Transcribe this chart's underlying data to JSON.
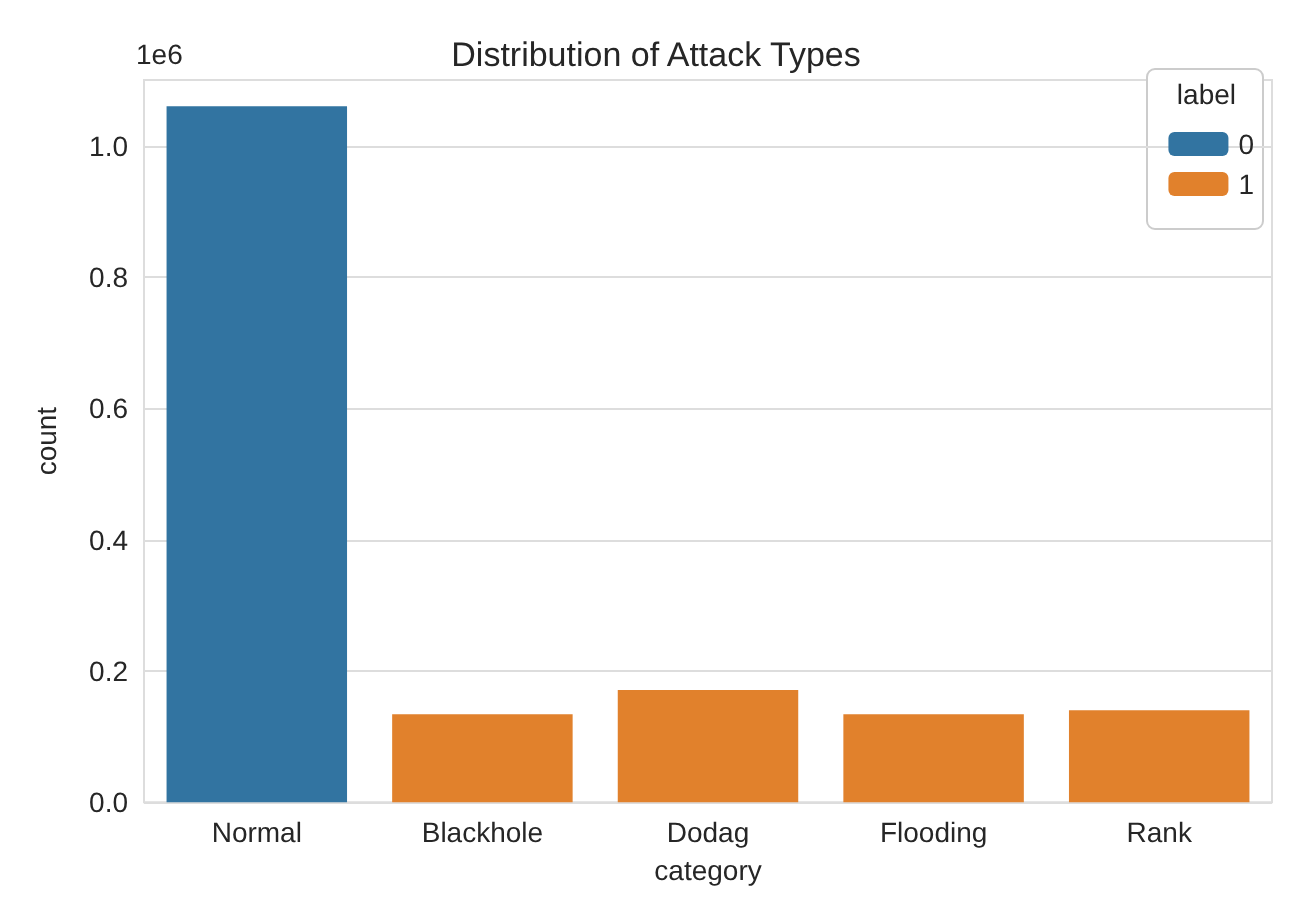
{
  "chart_data": {
    "type": "bar",
    "title": "Distribution of Attack Types",
    "xlabel": "category",
    "ylabel": "count",
    "legend_title": "label",
    "annotations": [
      "1e6"
    ],
    "categories": [
      "Normal",
      "Blackhole",
      "Dodag",
      "Flooding",
      "Rank"
    ],
    "series": [
      {
        "name": "0",
        "color": "#3274a1",
        "values": [
          1.06,
          null,
          null,
          null,
          null
        ]
      },
      {
        "name": "1",
        "color": "#e1812c",
        "values": [
          null,
          0.134,
          0.171,
          0.134,
          0.14
        ]
      }
    ],
    "stacked": true,
    "ylim": [
      0,
      1.1
    ],
    "yticks": [
      {
        "value": 0,
        "label": "0.0"
      },
      {
        "value": 0.2,
        "label": "0.2"
      },
      {
        "value": 0.4,
        "label": "0.4"
      },
      {
        "value": 0.6,
        "label": "0.6"
      },
      {
        "value": 0.8,
        "label": "0.8"
      },
      {
        "value": 1,
        "label": "1.0"
      }
    ],
    "grid": "y",
    "legend": "top right"
  }
}
